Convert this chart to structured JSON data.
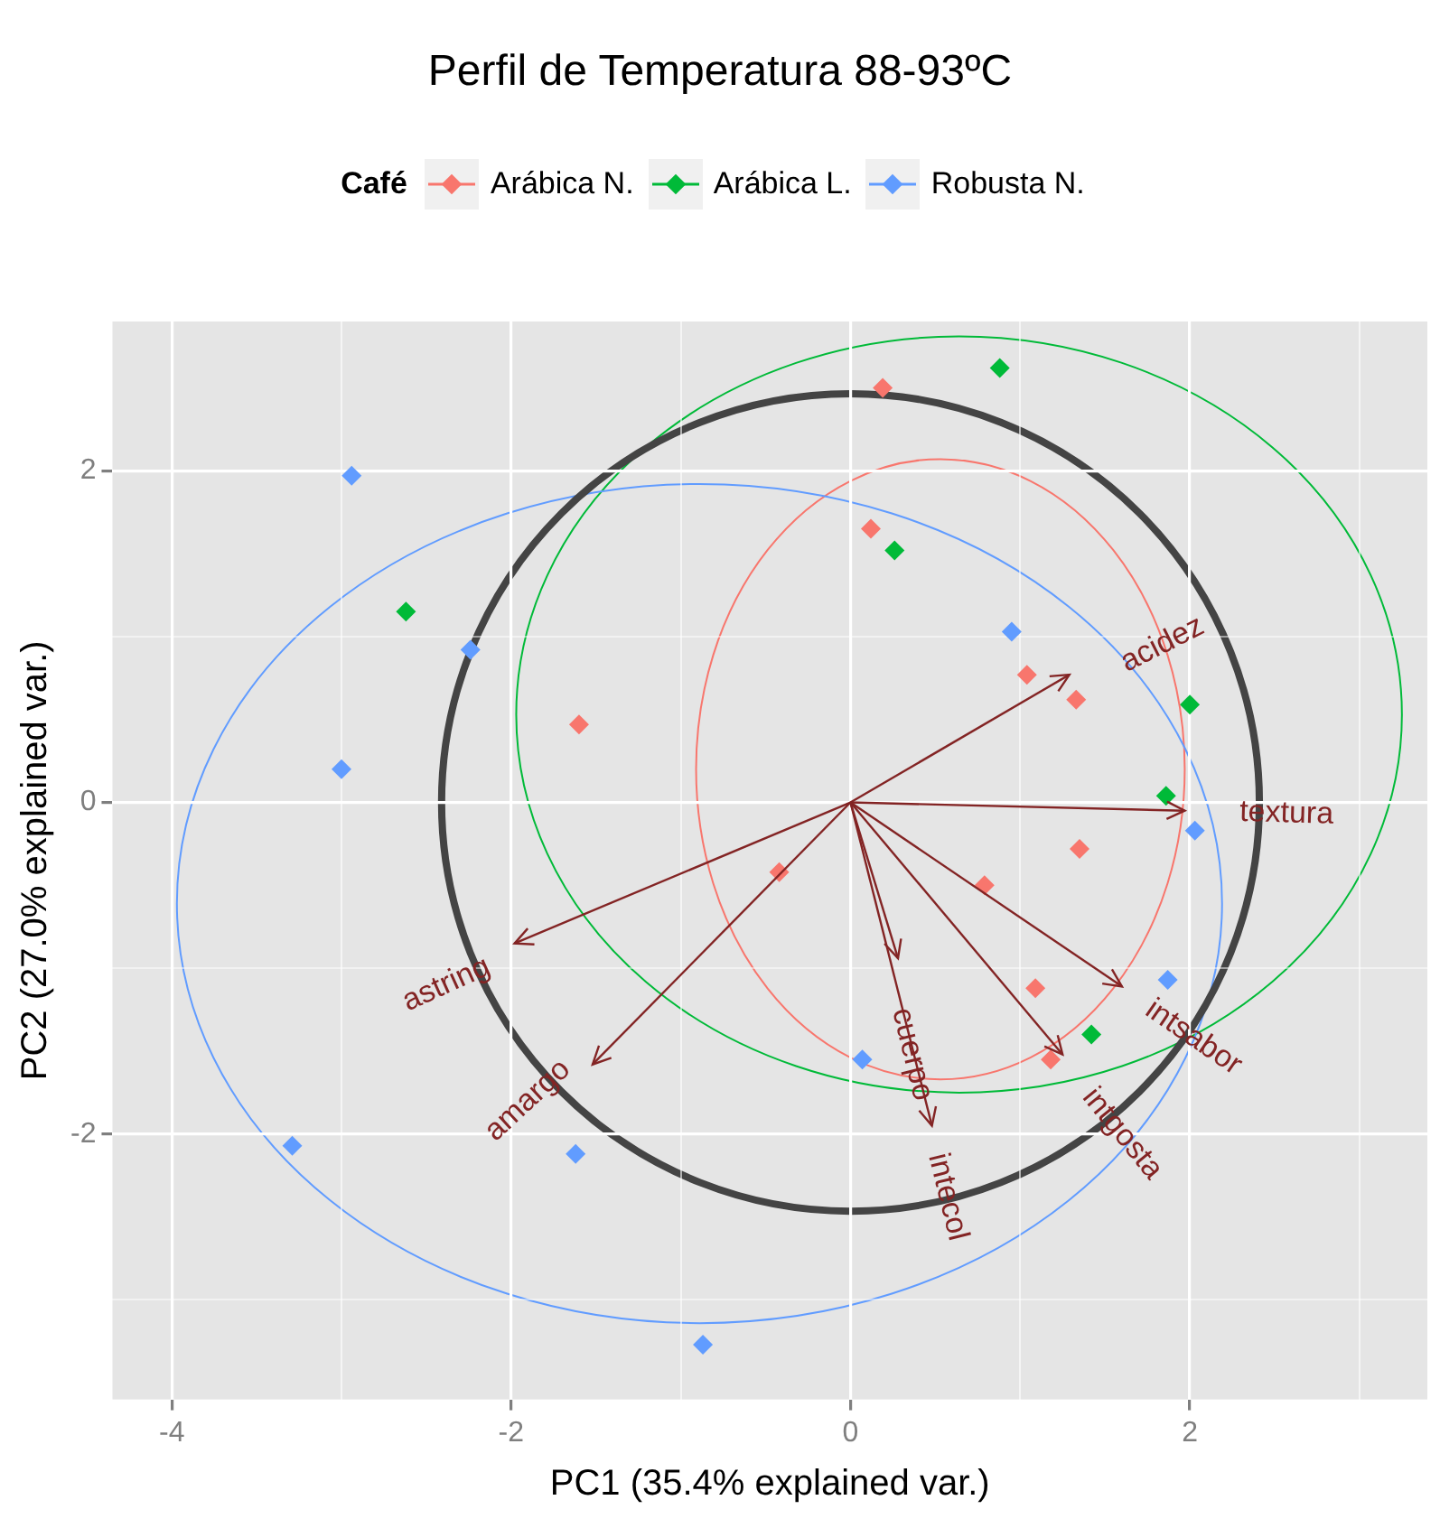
{
  "chart_data": {
    "type": "scatter",
    "title": "Perfil de Temperatura 88-93ºC",
    "xlabel": "PC1 (35.4% explained var.)",
    "ylabel": "PC2 (27.0% explained var.)",
    "legend_title": "Café",
    "legend": "top",
    "grid": true,
    "marker": "diamond",
    "xlim": [
      -4.35,
      3.4
    ],
    "ylim": [
      -3.6,
      2.9
    ],
    "xticks": [
      -4,
      {
        "value": -3,
        "label": null
      },
      -2,
      {
        "value": -1,
        "label": null
      },
      0,
      {
        "value": 1,
        "label": null
      },
      2,
      {
        "value": 3,
        "label": null
      }
    ],
    "yticks": [
      {
        "value": -3,
        "label": null
      },
      -2,
      {
        "value": -1,
        "label": null
      },
      0,
      {
        "value": 1,
        "label": null
      },
      2
    ],
    "series": [
      {
        "name": "Arábica N.",
        "color": "#f8766d",
        "x": [
          0.19,
          0.12,
          -1.6,
          1.04,
          1.33,
          1.35,
          -0.42,
          0.79,
          1.09,
          1.18
        ],
        "values": [
          2.5,
          1.65,
          0.47,
          0.77,
          0.62,
          -0.28,
          -0.42,
          -0.5,
          -1.12,
          -1.55
        ]
      },
      {
        "name": "Arábica L.",
        "color": "#00ba38",
        "x": [
          0.88,
          -2.62,
          0.26,
          2.0,
          1.86,
          1.42
        ],
        "values": [
          2.62,
          1.15,
          1.52,
          0.59,
          0.04,
          -1.4
        ]
      },
      {
        "name": "Robusta N.",
        "color": "#619cff",
        "x": [
          -2.94,
          -3.0,
          -2.24,
          -3.29,
          -1.62,
          -0.87,
          0.07,
          0.95,
          2.03,
          1.87
        ],
        "values": [
          1.97,
          0.2,
          0.92,
          -2.07,
          -2.12,
          -3.27,
          -1.55,
          1.03,
          -0.17,
          -1.07
        ]
      }
    ],
    "annotations": [
      "acidez",
      "textura",
      "astring",
      "amargo",
      "intsabor",
      "intgosta",
      "cuerpo",
      "intecol"
    ]
  }
}
